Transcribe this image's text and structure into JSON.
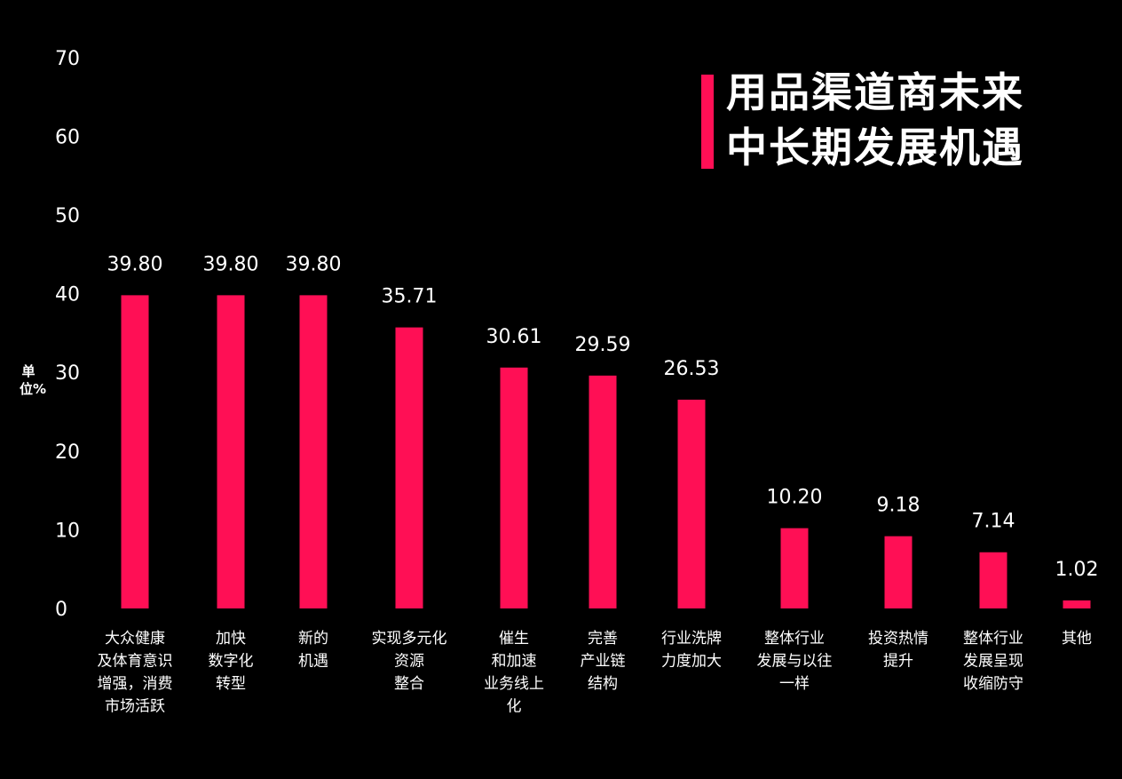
{
  "title": {
    "line1": "用品渠道商未来",
    "line2": "中长期发展机遇"
  },
  "colors": {
    "background": "#000000",
    "bar": "#ff0f55",
    "text": "#ffffff"
  },
  "chart_data": {
    "type": "bar",
    "title": "用品渠道商未来中长期发展机遇",
    "ylabel": "单位%",
    "xlabel": "",
    "ylim": [
      0,
      70
    ],
    "yticks": [
      "0",
      "10",
      "20",
      "30",
      "40",
      "50",
      "60",
      "70"
    ],
    "grid": false,
    "categories": [
      [
        "大众健康",
        "及体育意识",
        "增强，消费",
        "市场活跃"
      ],
      [
        "加快",
        "数字化",
        "转型"
      ],
      [
        "新的",
        "机遇"
      ],
      [
        "实现多元化",
        "资源",
        "整合"
      ],
      [
        "催生",
        "和加速",
        "业务线上",
        "化"
      ],
      [
        "完善",
        "产业链",
        "结构"
      ],
      [
        "行业洗牌",
        "力度加大"
      ],
      [
        "整体行业",
        "发展与以往",
        "一样"
      ],
      [
        "投资热情",
        "提升"
      ],
      [
        "整体行业",
        "发展呈现",
        "收缩防守"
      ],
      [
        "其他"
      ]
    ],
    "values": [
      39.8,
      39.8,
      39.8,
      35.71,
      30.61,
      29.59,
      26.53,
      10.2,
      9.18,
      7.14,
      1.02
    ],
    "value_labels": [
      "39.80",
      "39.80",
      "39.80",
      "35.71",
      "30.61",
      "29.59",
      "26.53",
      "10.20",
      "9.18",
      "7.14",
      "1.02"
    ]
  }
}
